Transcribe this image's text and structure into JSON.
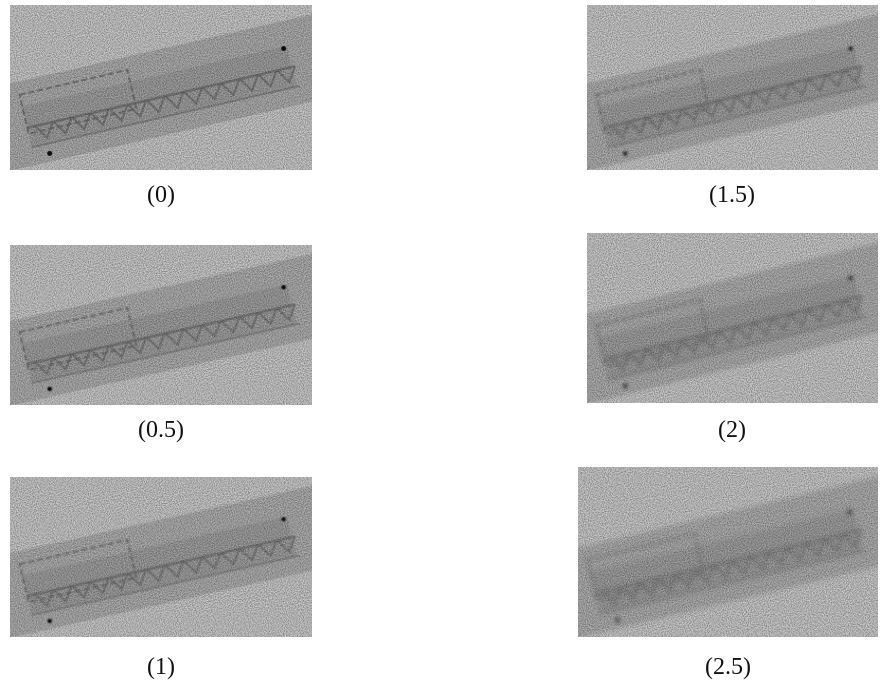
{
  "panels": [
    {
      "caption": "(0)"
    },
    {
      "caption": "(0.5)"
    },
    {
      "caption": "(1)"
    },
    {
      "caption": "(1.5)"
    },
    {
      "caption": "(2)"
    },
    {
      "caption": "(2.5)"
    }
  ]
}
